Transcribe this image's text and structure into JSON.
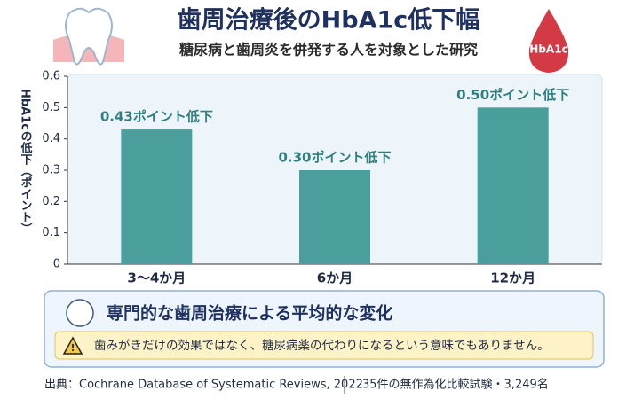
{
  "chart_data": {
    "type": "bar",
    "title": "歯周治療後のHbA1c低下幅",
    "subtitle": "糖尿病と歯周炎を併発する人を対象とした研究",
    "y_label": "HbA1cの低下（ポイント）",
    "categories": [
      "3～4か月",
      "6か月",
      "12か月"
    ],
    "values": [
      0.43,
      0.3,
      0.5
    ],
    "value_labels": [
      "0.43ポイント低下",
      "0.30ポイント低下",
      "0.50ポイント低下"
    ],
    "color": "#4a9e9c",
    "ylim": [
      0,
      0.6
    ],
    "yticks": [
      0,
      0.1,
      0.2,
      0.3,
      0.4,
      0.5,
      0.6
    ],
    "grid": false
  },
  "badge": "HbA1c",
  "callout": {
    "heading": "専門的な歯周治療による平均的な変化",
    "warning": "歯みがきだけの効果ではなく、糖尿病薬の代わりになるという意味でもありません。"
  },
  "footer": {
    "source": "出典：Cochrane Database of Systematic Reviews, 2022",
    "studies": "35件の無作為化比較試験・3,249名"
  }
}
